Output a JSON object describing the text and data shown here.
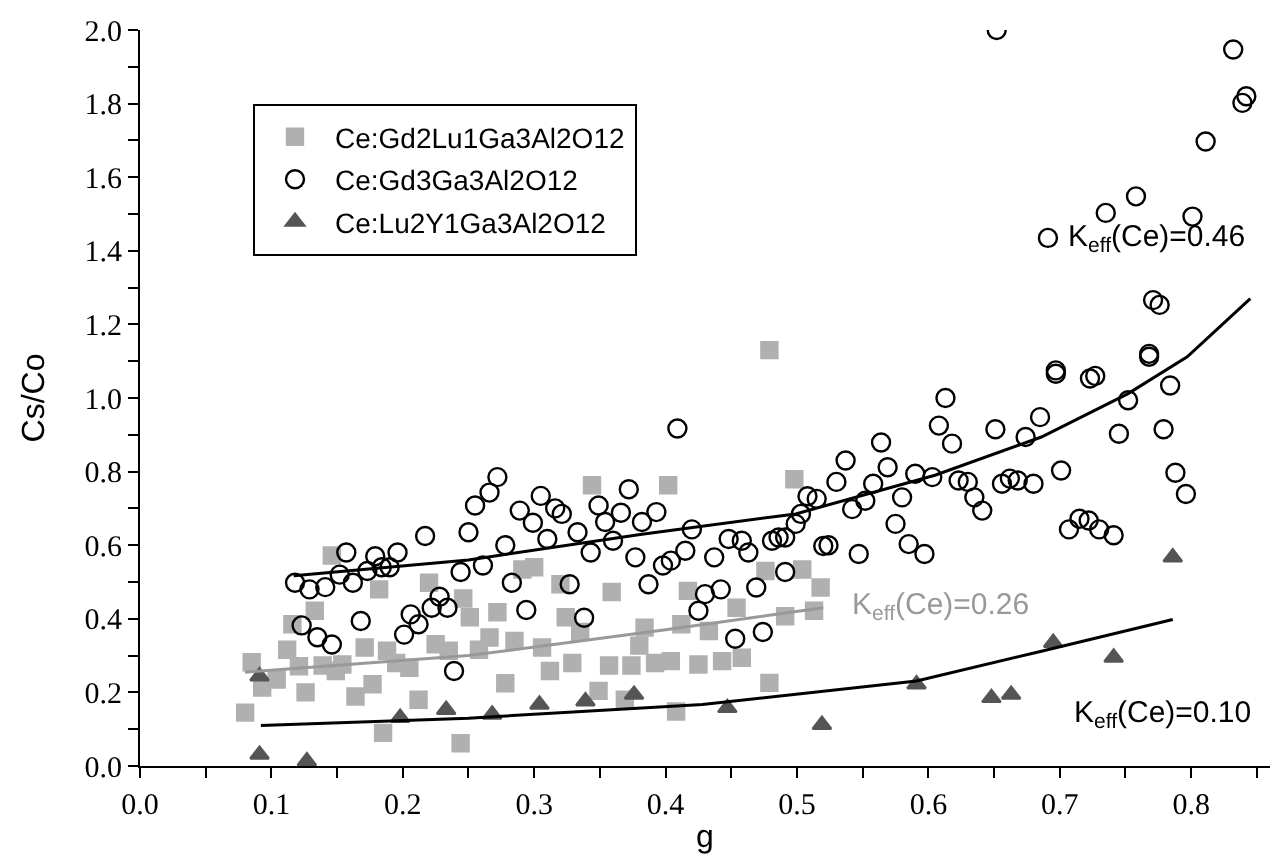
{
  "chart_data": {
    "type": "scatter",
    "xlabel": "g",
    "ylabel": "Cs/Co",
    "xlim": [
      0,
      0.86
    ],
    "ylim": [
      0,
      2.0
    ],
    "xticks": [
      {
        "value": 0,
        "label": "0.0"
      },
      {
        "value": 0.05,
        "label": null
      },
      0.1,
      {
        "value": 0.15,
        "label": null
      },
      0.2,
      {
        "value": 0.25,
        "label": null
      },
      0.3,
      {
        "value": 0.35,
        "label": null
      },
      0.4,
      {
        "value": 0.45,
        "label": null
      },
      0.5,
      {
        "value": 0.55,
        "label": null
      },
      0.6,
      {
        "value": 0.65,
        "label": null
      },
      0.7,
      {
        "value": 0.75,
        "label": null
      },
      0.8,
      {
        "value": 0.85,
        "label": null
      }
    ],
    "yticks": [
      {
        "value": 0,
        "label": "0.0"
      },
      {
        "value": 0.1,
        "label": null
      },
      0.2,
      {
        "value": 0.3,
        "label": null
      },
      0.4,
      {
        "value": 0.5,
        "label": null
      },
      0.6,
      {
        "value": 0.7,
        "label": null
      },
      0.8,
      {
        "value": 0.9,
        "label": null
      },
      {
        "value": 1.0,
        "label": "1.0"
      },
      {
        "value": 1.1,
        "label": null
      },
      1.2,
      {
        "value": 1.3,
        "label": null
      },
      1.4,
      {
        "value": 1.5,
        "label": null
      },
      1.6,
      {
        "value": 1.7,
        "label": null
      },
      1.8,
      {
        "value": 1.9,
        "label": null
      },
      {
        "value": 2.0,
        "label": "2.0"
      }
    ],
    "legend": "top left",
    "series": [
      {
        "name": "Ce:Gd2Lu1Ga3Al2O12",
        "color": "#b0b0b0",
        "marker": "square",
        "x": [
          0.08,
          0.085,
          0.093,
          0.104,
          0.112,
          0.116,
          0.121,
          0.126,
          0.133,
          0.139,
          0.146,
          0.149,
          0.154,
          0.164,
          0.171,
          0.177,
          0.182,
          0.185,
          0.188,
          0.195,
          0.205,
          0.212,
          0.22,
          0.225,
          0.235,
          0.244,
          0.246,
          0.251,
          0.258,
          0.266,
          0.272,
          0.278,
          0.285,
          0.291,
          0.3,
          0.306,
          0.312,
          0.32,
          0.324,
          0.329,
          0.335,
          0.344,
          0.349,
          0.357,
          0.359,
          0.369,
          0.374,
          0.38,
          0.384,
          0.392,
          0.402,
          0.404,
          0.408,
          0.412,
          0.417,
          0.425,
          0.433,
          0.443,
          0.454,
          0.458,
          0.476,
          0.479,
          0.479,
          0.491,
          0.498,
          0.504,
          0.513,
          0.518
        ],
        "values": [
          0.145,
          0.282,
          0.213,
          0.235,
          0.316,
          0.385,
          0.271,
          0.2,
          0.422,
          0.273,
          0.572,
          0.258,
          0.276,
          0.189,
          0.322,
          0.222,
          0.48,
          0.09,
          0.313,
          0.28,
          0.267,
          0.18,
          0.498,
          0.331,
          0.313,
          0.062,
          0.455,
          0.404,
          0.316,
          0.349,
          0.418,
          0.225,
          0.34,
          0.534,
          0.54,
          0.322,
          0.258,
          0.494,
          0.404,
          0.28,
          0.364,
          0.763,
          0.204,
          0.273,
          0.473,
          0.18,
          0.273,
          0.327,
          0.376,
          0.28,
          0.763,
          0.285,
          0.148,
          0.385,
          0.476,
          0.276,
          0.367,
          0.285,
          0.43,
          0.294,
          0.53,
          0.226,
          1.13,
          0.407,
          0.779,
          0.534,
          0.422,
          0.485
        ]
      },
      {
        "name": "Ce:Gd3Ga3Al2O12",
        "color": "#000000",
        "marker": "circle",
        "x": [
          0.118,
          0.123,
          0.129,
          0.135,
          0.141,
          0.146,
          0.152,
          0.157,
          0.162,
          0.168,
          0.173,
          0.179,
          0.184,
          0.19,
          0.196,
          0.201,
          0.206,
          0.212,
          0.217,
          0.222,
          0.228,
          0.234,
          0.239,
          0.244,
          0.25,
          0.255,
          0.261,
          0.266,
          0.272,
          0.278,
          0.283,
          0.289,
          0.294,
          0.299,
          0.305,
          0.31,
          0.316,
          0.321,
          0.327,
          0.333,
          0.338,
          0.343,
          0.349,
          0.354,
          0.36,
          0.366,
          0.372,
          0.377,
          0.382,
          0.387,
          0.393,
          0.398,
          0.404,
          0.409,
          0.415,
          0.42,
          0.425,
          0.43,
          0.437,
          0.442,
          0.448,
          0.453,
          0.458,
          0.463,
          0.469,
          0.474,
          0.481,
          0.486,
          0.491,
          0.491,
          0.499,
          0.503,
          0.508,
          0.515,
          0.52,
          0.524,
          0.53,
          0.537,
          0.542,
          0.547,
          0.552,
          0.558,
          0.564,
          0.569,
          0.575,
          0.58,
          0.585,
          0.59,
          0.597,
          0.603,
          0.608,
          0.613,
          0.618,
          0.623,
          0.63,
          0.635,
          0.641,
          0.651,
          0.652,
          0.656,
          0.662,
          0.668,
          0.674,
          0.68,
          0.685,
          0.691,
          0.697,
          0.697,
          0.701,
          0.707,
          0.715,
          0.722,
          0.723,
          0.727,
          0.73,
          0.735,
          0.741,
          0.745,
          0.752,
          0.758,
          0.768,
          0.768,
          0.771,
          0.776,
          0.779,
          0.784,
          0.788,
          0.796,
          0.801,
          0.811,
          0.832,
          0.839,
          0.842
        ],
        "values": [
          0.498,
          0.382,
          0.48,
          0.35,
          0.486,
          0.33,
          0.52,
          0.58,
          0.498,
          0.394,
          0.53,
          0.57,
          0.54,
          0.54,
          0.58,
          0.357,
          0.412,
          0.385,
          0.625,
          0.43,
          0.46,
          0.43,
          0.258,
          0.527,
          0.635,
          0.708,
          0.545,
          0.743,
          0.785,
          0.6,
          0.498,
          0.694,
          0.424,
          0.661,
          0.734,
          0.617,
          0.7,
          0.685,
          0.494,
          0.635,
          0.403,
          0.58,
          0.708,
          0.663,
          0.612,
          0.688,
          0.752,
          0.567,
          0.663,
          0.494,
          0.69,
          0.545,
          0.558,
          0.917,
          0.585,
          0.643,
          0.422,
          0.467,
          0.567,
          0.48,
          0.617,
          0.346,
          0.612,
          0.58,
          0.485,
          0.364,
          0.612,
          0.621,
          0.621,
          0.527,
          0.658,
          0.685,
          0.733,
          0.726,
          0.598,
          0.6,
          0.772,
          0.83,
          0.698,
          0.576,
          0.721,
          0.767,
          0.879,
          0.812,
          0.658,
          0.73,
          0.603,
          0.794,
          0.576,
          0.785,
          0.925,
          1.0,
          0.876,
          0.776,
          0.772,
          0.73,
          0.694,
          0.915,
          2.0,
          0.767,
          0.781,
          0.776,
          0.894,
          0.767,
          0.948,
          1.435,
          1.075,
          1.066,
          0.803,
          0.643,
          0.672,
          0.667,
          1.053,
          1.06,
          0.643,
          1.503,
          0.627,
          0.903,
          0.994,
          1.548,
          1.112,
          1.12,
          1.266,
          1.253,
          0.915,
          1.034,
          0.797,
          0.739,
          1.493,
          1.697,
          1.947,
          1.802,
          1.82
        ]
      },
      {
        "name": "Ce:Lu2Y1Ga3Al2O12",
        "color": "#555555",
        "marker": "triangle",
        "x": [
          0.091,
          0.091,
          0.127,
          0.198,
          0.233,
          0.268,
          0.304,
          0.339,
          0.376,
          0.447,
          0.519,
          0.591,
          0.648,
          0.663,
          0.695,
          0.741,
          0.786
        ],
        "values": [
          0.244,
          0.031,
          0.013,
          0.131,
          0.153,
          0.14,
          0.167,
          0.176,
          0.194,
          0.158,
          0.112,
          0.222,
          0.185,
          0.194,
          0.335,
          0.295,
          0.567
        ]
      },
      {
        "type": "line",
        "name": "K$_{eff}$(Ce)=0.46",
        "color": "#000000",
        "marker": "none",
        "x": [
          0.117,
          0.25,
          0.382,
          0.499,
          0.605,
          0.686,
          0.752,
          0.797,
          0.845
        ],
        "values": [
          0.517,
          0.56,
          0.63,
          0.685,
          0.79,
          0.894,
          1.012,
          1.112,
          1.27
        ]
      },
      {
        "type": "line",
        "name": "K$_{eff}$(Ce)=0.26",
        "color": "#999999",
        "marker": "none",
        "x": [
          0.08,
          0.25,
          0.4,
          0.52
        ],
        "values": [
          0.255,
          0.3,
          0.37,
          0.43
        ]
      },
      {
        "type": "line",
        "name": "K$_{eff}$(Ce)=0.10",
        "color": "#000000",
        "marker": "none",
        "x": [
          0.092,
          0.25,
          0.428,
          0.591,
          0.686,
          0.786
        ],
        "values": [
          0.11,
          0.13,
          0.167,
          0.231,
          0.312,
          0.398
        ]
      }
    ]
  }
}
